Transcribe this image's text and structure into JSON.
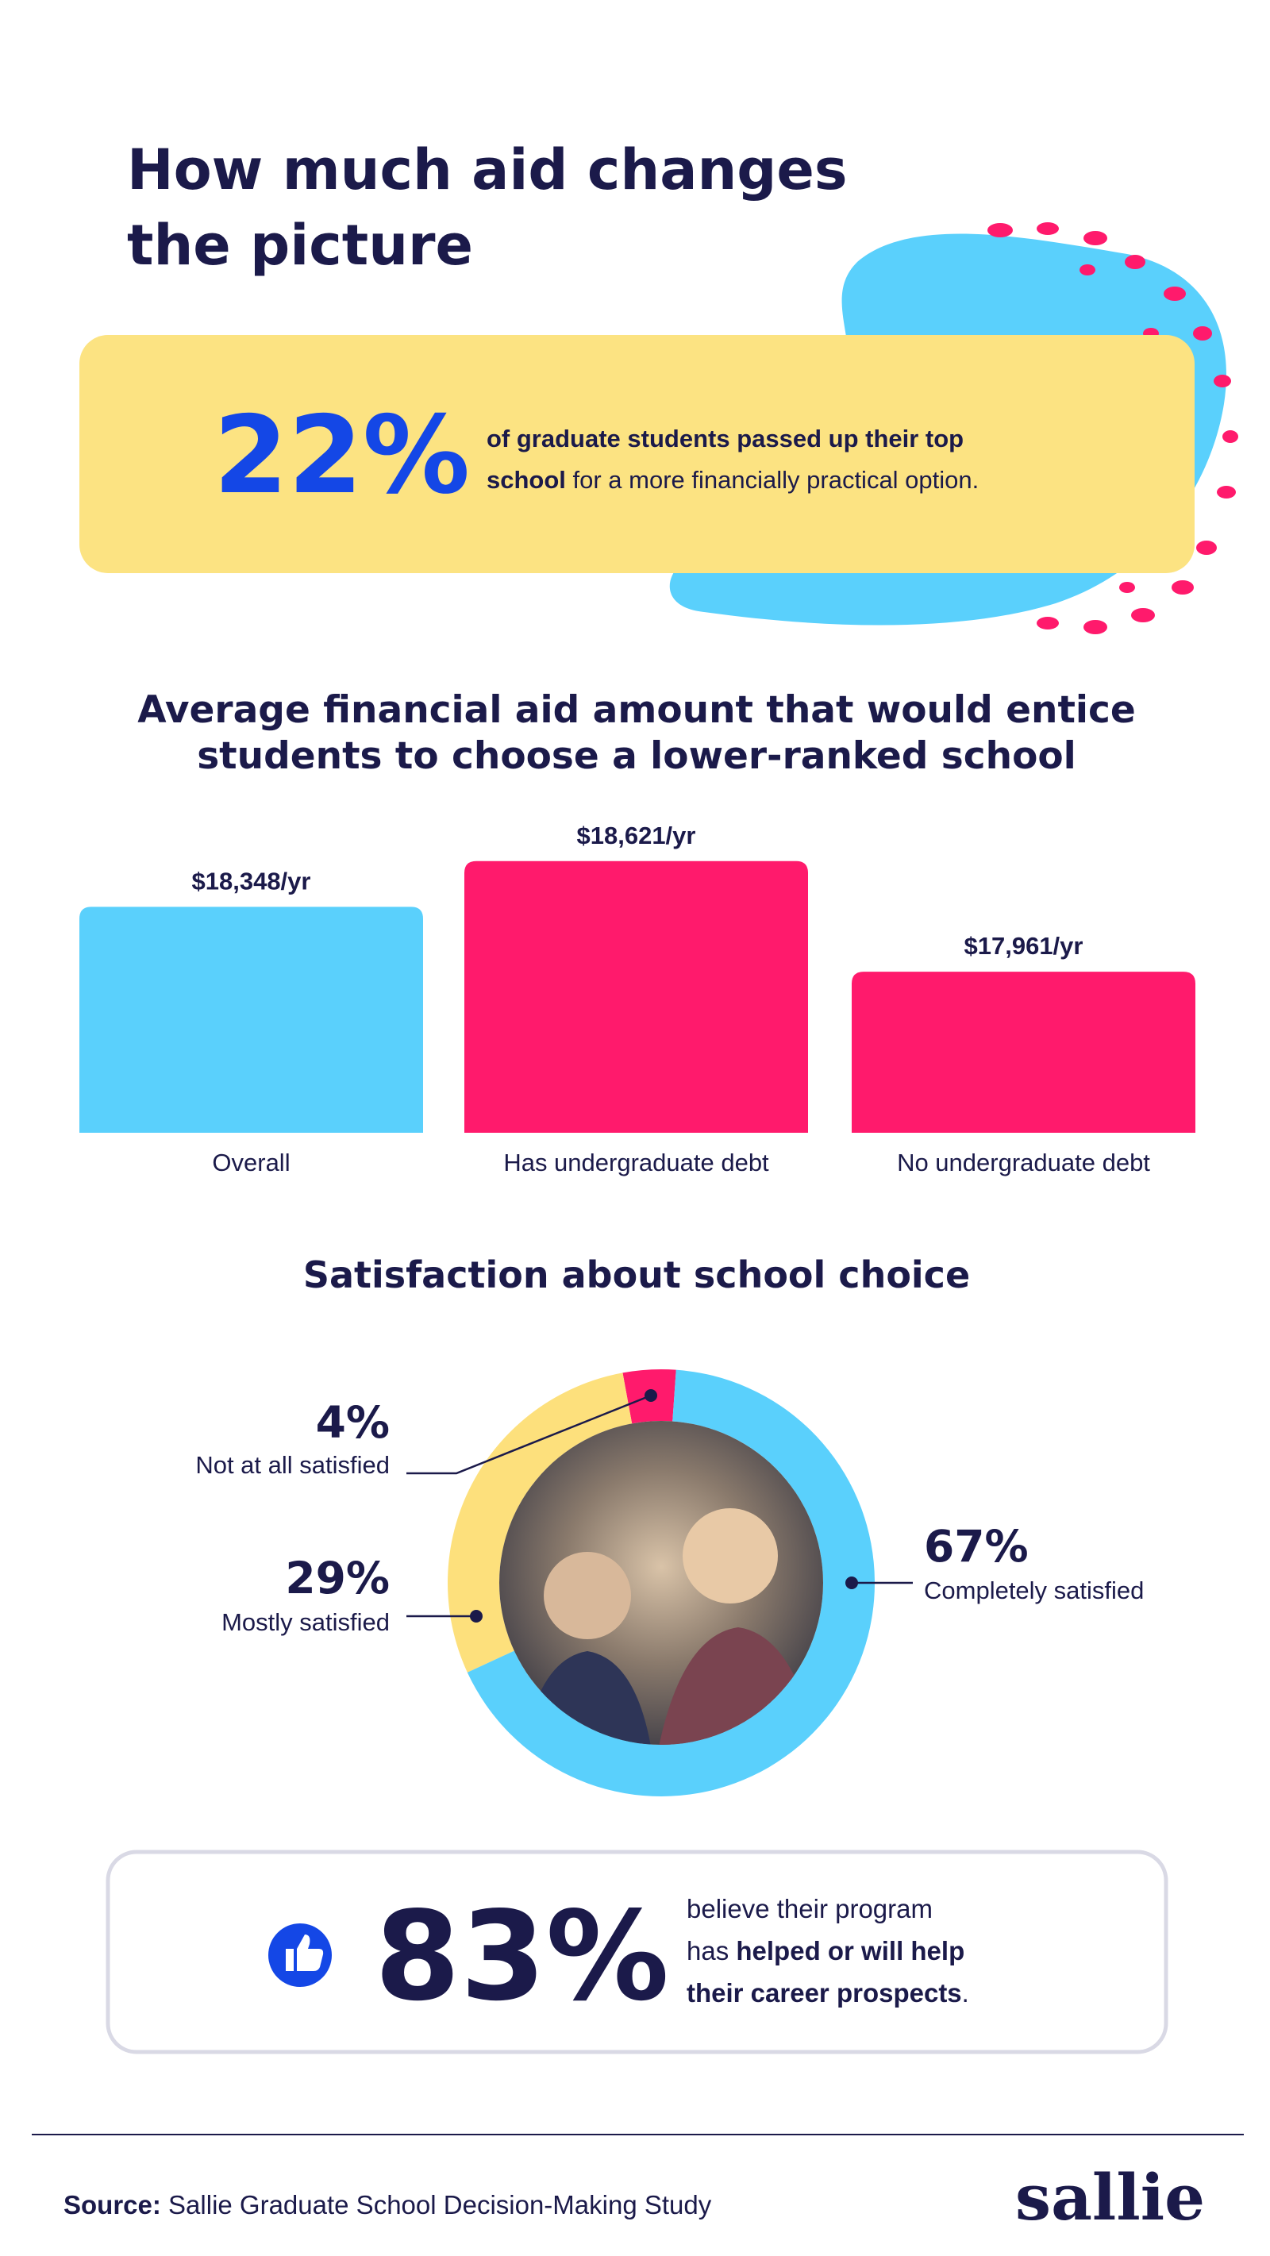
{
  "title_lines": [
    "How much aid changes",
    "the picture"
  ],
  "callout": {
    "stat": "22%",
    "lines": [
      [
        {
          "t": "of graduate students passed up their top",
          "b": true
        }
      ],
      [
        {
          "t": "school",
          "b": true
        },
        {
          "t": " for a more financially practical option."
        }
      ]
    ]
  },
  "chart_data": [
    {
      "type": "bar",
      "title_lines": [
        "Average financial aid amount that would entice",
        "students to choose a lower-ranked school"
      ],
      "categories": [
        "Overall",
        "Has undergraduate debt",
        "No undergraduate debt"
      ],
      "values": [
        18348,
        18621,
        17961
      ],
      "value_labels": [
        "$18,348/yr",
        "$18,621/yr",
        "$17,961/yr"
      ],
      "colors": [
        "#5ad0fc",
        "#ff1a6c",
        "#ff1a6c"
      ],
      "ylim": [
        17000,
        18800
      ]
    },
    {
      "type": "pie",
      "title": "Satisfaction about school choice",
      "categories": [
        "Not at all satisfied",
        "Mostly satisfied",
        "Completely satisfied"
      ],
      "values": [
        4,
        29,
        67
      ],
      "value_labels": [
        "4%",
        "29%",
        "67%"
      ],
      "colors": [
        "#ff1a6c",
        "#fde07c",
        "#5ad0fc"
      ],
      "donut": true
    }
  ],
  "highlight": {
    "stat": "83%",
    "lines": [
      [
        {
          "t": "believe their program"
        }
      ],
      [
        {
          "t": "has "
        },
        {
          "t": "helped or will help",
          "b": true
        }
      ],
      [
        {
          "t": "their career prospects",
          "b": true
        },
        {
          "t": "."
        }
      ]
    ]
  },
  "source": [
    {
      "t": "Source:",
      "b": true
    },
    {
      "t": " Sallie Graduate School Decision-Making Study"
    }
  ],
  "logo": "sallie"
}
